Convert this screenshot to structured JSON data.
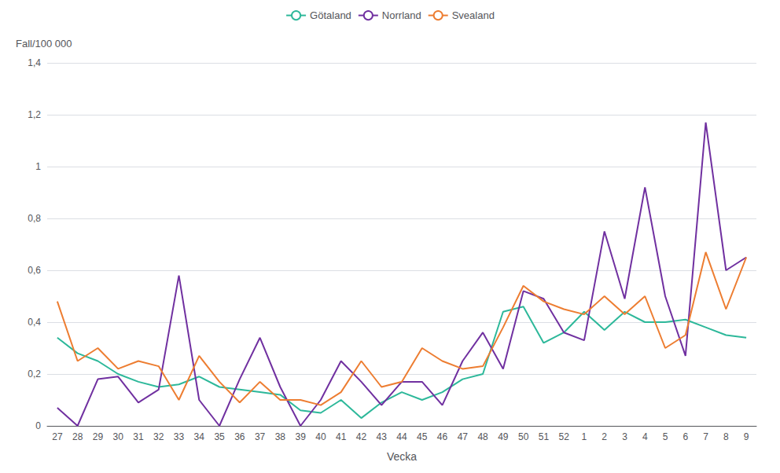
{
  "chart_data": {
    "type": "line",
    "xlabel": "Vecka",
    "ylabel": "Fall/100 000",
    "categories": [
      "27",
      "28",
      "29",
      "30",
      "31",
      "32",
      "33",
      "34",
      "35",
      "36",
      "37",
      "38",
      "39",
      "40",
      "41",
      "42",
      "43",
      "44",
      "45",
      "46",
      "47",
      "48",
      "49",
      "50",
      "51",
      "52",
      "1",
      "2",
      "3",
      "4",
      "5",
      "6",
      "7",
      "8",
      "9"
    ],
    "series": [
      {
        "name": "Götaland",
        "color": "#2db89a",
        "values": [
          0.34,
          0.28,
          0.25,
          0.2,
          0.17,
          0.15,
          0.16,
          0.19,
          0.15,
          0.14,
          0.13,
          0.12,
          0.06,
          0.05,
          0.1,
          0.03,
          0.09,
          0.13,
          0.1,
          0.13,
          0.18,
          0.2,
          0.44,
          0.46,
          0.32,
          0.36,
          0.44,
          0.37,
          0.44,
          0.4,
          0.4,
          0.41,
          0.38,
          0.35,
          0.34
        ]
      },
      {
        "name": "Norrland",
        "color": "#7030a0",
        "values": [
          0.07,
          0.0,
          0.18,
          0.19,
          0.09,
          0.14,
          0.58,
          0.1,
          0.0,
          0.18,
          0.34,
          0.15,
          0.0,
          0.1,
          0.25,
          0.17,
          0.08,
          0.17,
          0.17,
          0.08,
          0.25,
          0.36,
          0.22,
          0.52,
          0.49,
          0.36,
          0.33,
          0.75,
          0.49,
          0.92,
          0.5,
          0.27,
          1.17,
          0.6,
          0.65
        ]
      },
      {
        "name": "Svealand",
        "color": "#ed7d31",
        "values": [
          0.48,
          0.25,
          0.3,
          0.22,
          0.25,
          0.23,
          0.1,
          0.27,
          0.17,
          0.09,
          0.17,
          0.1,
          0.1,
          0.08,
          0.13,
          0.25,
          0.15,
          0.17,
          0.3,
          0.25,
          0.22,
          0.23,
          0.38,
          0.54,
          0.48,
          0.45,
          0.43,
          0.5,
          0.43,
          0.5,
          0.3,
          0.35,
          0.67,
          0.45,
          0.65
        ]
      }
    ],
    "ylim": [
      0,
      1.4
    ],
    "yticks": [
      0,
      {
        "value": 0.2,
        "label": "0,2"
      },
      {
        "value": 0.4,
        "label": "0,4"
      },
      {
        "value": 0.6,
        "label": "0,6"
      },
      {
        "value": 0.8,
        "label": "0,8"
      },
      1,
      {
        "value": 1.2,
        "label": "1,2"
      },
      {
        "value": 1.4,
        "label": "1,4"
      }
    ],
    "grid": true,
    "legend": "top"
  }
}
